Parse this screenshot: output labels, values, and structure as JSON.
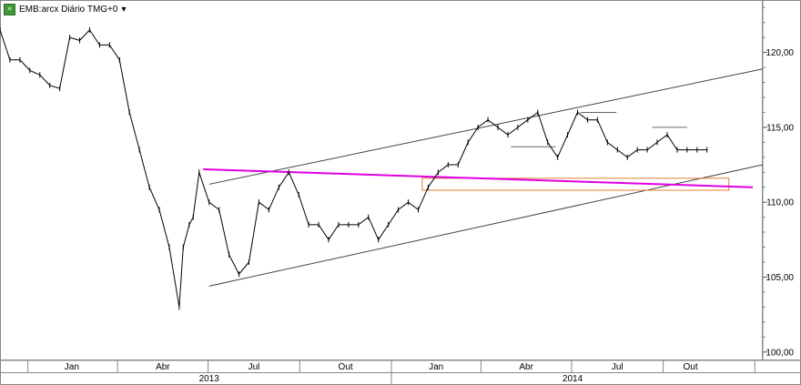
{
  "header": {
    "symbol_label": "EMB:arcx Diário TMG+0",
    "dropdown_glyph": "▾",
    "logo_glyph": "≡"
  },
  "colors": {
    "price": "#000000",
    "trend": "#444444",
    "magenta_line": "#e000e0",
    "box": "#e08030",
    "grid": "#888888"
  },
  "chart_data": {
    "type": "line",
    "title": "",
    "xlabel": "",
    "ylabel": "",
    "ylim": [
      99.5,
      123.5
    ],
    "x_range": [
      "2012-12-04",
      "2015-01-09"
    ],
    "yticks": [
      100,
      105,
      110,
      115,
      120
    ],
    "ytick_labels": [
      "100,00",
      "105,00",
      "110,00",
      "115,00",
      "120,00"
    ],
    "month_ticks": [
      {
        "date": "2013-01-01",
        "label": "Jan"
      },
      {
        "date": "2013-04-01",
        "label": "Abr"
      },
      {
        "date": "2013-07-01",
        "label": "Jul"
      },
      {
        "date": "2013-10-01",
        "label": "Out"
      },
      {
        "date": "2014-01-01",
        "label": "Jan"
      },
      {
        "date": "2014-04-01",
        "label": "Abr"
      },
      {
        "date": "2014-07-01",
        "label": "Jul"
      },
      {
        "date": "2014-10-01",
        "label": "Out"
      }
    ],
    "year_labels": [
      {
        "date": "2013-07-02",
        "label": "2013"
      },
      {
        "date": "2014-07-02",
        "label": "2014"
      }
    ],
    "year_divider": "2014-01-01",
    "grid": false,
    "series": [
      {
        "x": [
          "2012-12-04",
          "2012-12-14",
          "2012-12-24",
          "2013-01-03",
          "2013-01-13",
          "2013-01-23",
          "2013-02-02",
          "2013-02-12",
          "2013-02-22",
          "2013-03-04",
          "2013-03-14",
          "2013-03-24",
          "2013-04-03",
          "2013-04-13",
          "2013-04-23",
          "2013-05-03",
          "2013-05-13",
          "2013-05-23",
          "2013-06-02",
          "2013-06-06",
          "2013-06-12",
          "2013-06-16",
          "2013-06-22",
          "2013-07-02",
          "2013-07-12",
          "2013-07-22",
          "2013-08-01",
          "2013-08-11",
          "2013-08-21",
          "2013-08-31",
          "2013-09-10",
          "2013-09-20",
          "2013-09-30",
          "2013-10-10",
          "2013-10-20",
          "2013-10-30",
          "2013-11-09",
          "2013-11-19",
          "2013-11-29",
          "2013-12-09",
          "2013-12-19",
          "2013-12-29",
          "2014-01-08",
          "2014-01-18",
          "2014-01-28",
          "2014-02-07",
          "2014-02-17",
          "2014-02-27",
          "2014-03-09",
          "2014-03-19",
          "2014-03-29",
          "2014-04-08",
          "2014-04-18",
          "2014-04-28",
          "2014-05-08",
          "2014-05-18",
          "2014-05-28",
          "2014-06-07",
          "2014-06-17",
          "2014-06-27",
          "2014-07-07",
          "2014-07-17",
          "2014-07-27",
          "2014-08-06",
          "2014-08-16",
          "2014-08-26",
          "2014-09-05",
          "2014-09-15",
          "2014-09-25",
          "2014-10-05",
          "2014-10-15",
          "2014-10-25",
          "2014-11-04",
          "2014-11-14"
        ],
        "values": [
          121.5,
          119.5,
          119.5,
          118.8,
          118.5,
          117.8,
          117.6,
          121.0,
          120.8,
          121.5,
          120.5,
          120.5,
          119.5,
          116.0,
          113.5,
          111.0,
          109.5,
          107.0,
          103.0,
          107.0,
          108.5,
          109.0,
          112.0,
          110.0,
          109.5,
          106.5,
          105.2,
          106.0,
          110.0,
          109.5,
          111.0,
          112.0,
          110.5,
          108.5,
          108.5,
          107.5,
          108.5,
          108.5,
          108.5,
          109.0,
          107.5,
          108.5,
          109.5,
          110.0,
          109.5,
          111.0,
          112.0,
          112.5,
          112.5,
          114.0,
          115.0,
          115.5,
          115.0,
          114.5,
          115.0,
          115.5,
          116.0,
          114.0,
          113.0,
          114.5,
          116.0,
          115.5,
          115.5,
          114.0,
          113.5,
          113.0,
          113.5,
          113.5,
          114.0,
          114.5,
          113.5,
          113.5,
          113.5,
          113.5
        ]
      }
    ],
    "trend_lines": [
      {
        "x1": "2013-07-02",
        "y1": 104.4,
        "x2": "2015-01-09",
        "y2": 112.5
      },
      {
        "x1": "2013-07-02",
        "y1": 111.2,
        "x2": "2015-01-09",
        "y2": 118.9
      }
    ],
    "magenta_line": {
      "x1": "2013-06-26",
      "y1": 112.2,
      "x2": "2014-12-30",
      "y2": 111.0
    },
    "horizontal_segments": [
      {
        "x1": "2014-05-01",
        "x2": "2014-06-15",
        "y": 113.7
      },
      {
        "x1": "2014-07-10",
        "x2": "2014-08-15",
        "y": 116.0
      },
      {
        "x1": "2014-09-20",
        "x2": "2014-10-25",
        "y": 115.0
      }
    ],
    "box": {
      "x1": "2014-02-01",
      "x2": "2014-12-06",
      "y1": 110.8,
      "y2": 111.6
    }
  }
}
